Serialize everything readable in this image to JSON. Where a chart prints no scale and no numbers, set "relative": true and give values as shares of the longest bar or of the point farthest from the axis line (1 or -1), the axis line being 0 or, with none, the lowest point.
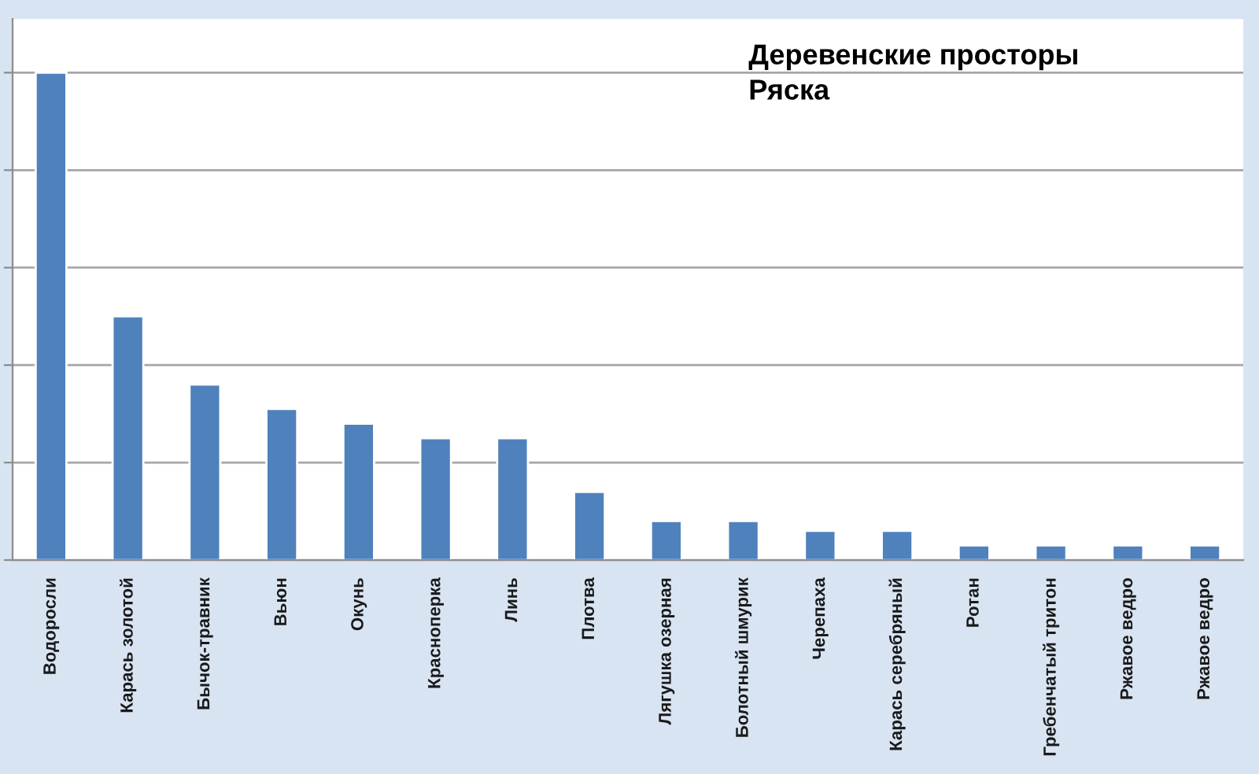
{
  "chart_data": {
    "type": "bar",
    "title": "Деревенские просторы",
    "subtitle": "Ряска",
    "categories": [
      "Водоросли",
      "Карась золотой",
      "Бычок-травник",
      "Вьюн",
      "Окунь",
      "Красноперка",
      "Линь",
      "Плотва",
      "Лягушка озерная",
      "Болотный шмурик",
      "Черепаха",
      "Карась серебряный",
      "Ротан",
      "Гребенчатый тритон",
      "Ржавое ведро",
      "Ржавое ведро"
    ],
    "values": [
      1,
      0.5,
      0.36,
      0.31,
      0.28,
      0.25,
      0.25,
      0.14,
      0.08,
      0.08,
      0.06,
      0.06,
      0.03,
      0.03,
      0.03,
      0.03
    ],
    "color": "#4f81bd",
    "relative": true,
    "grid": "y"
  }
}
